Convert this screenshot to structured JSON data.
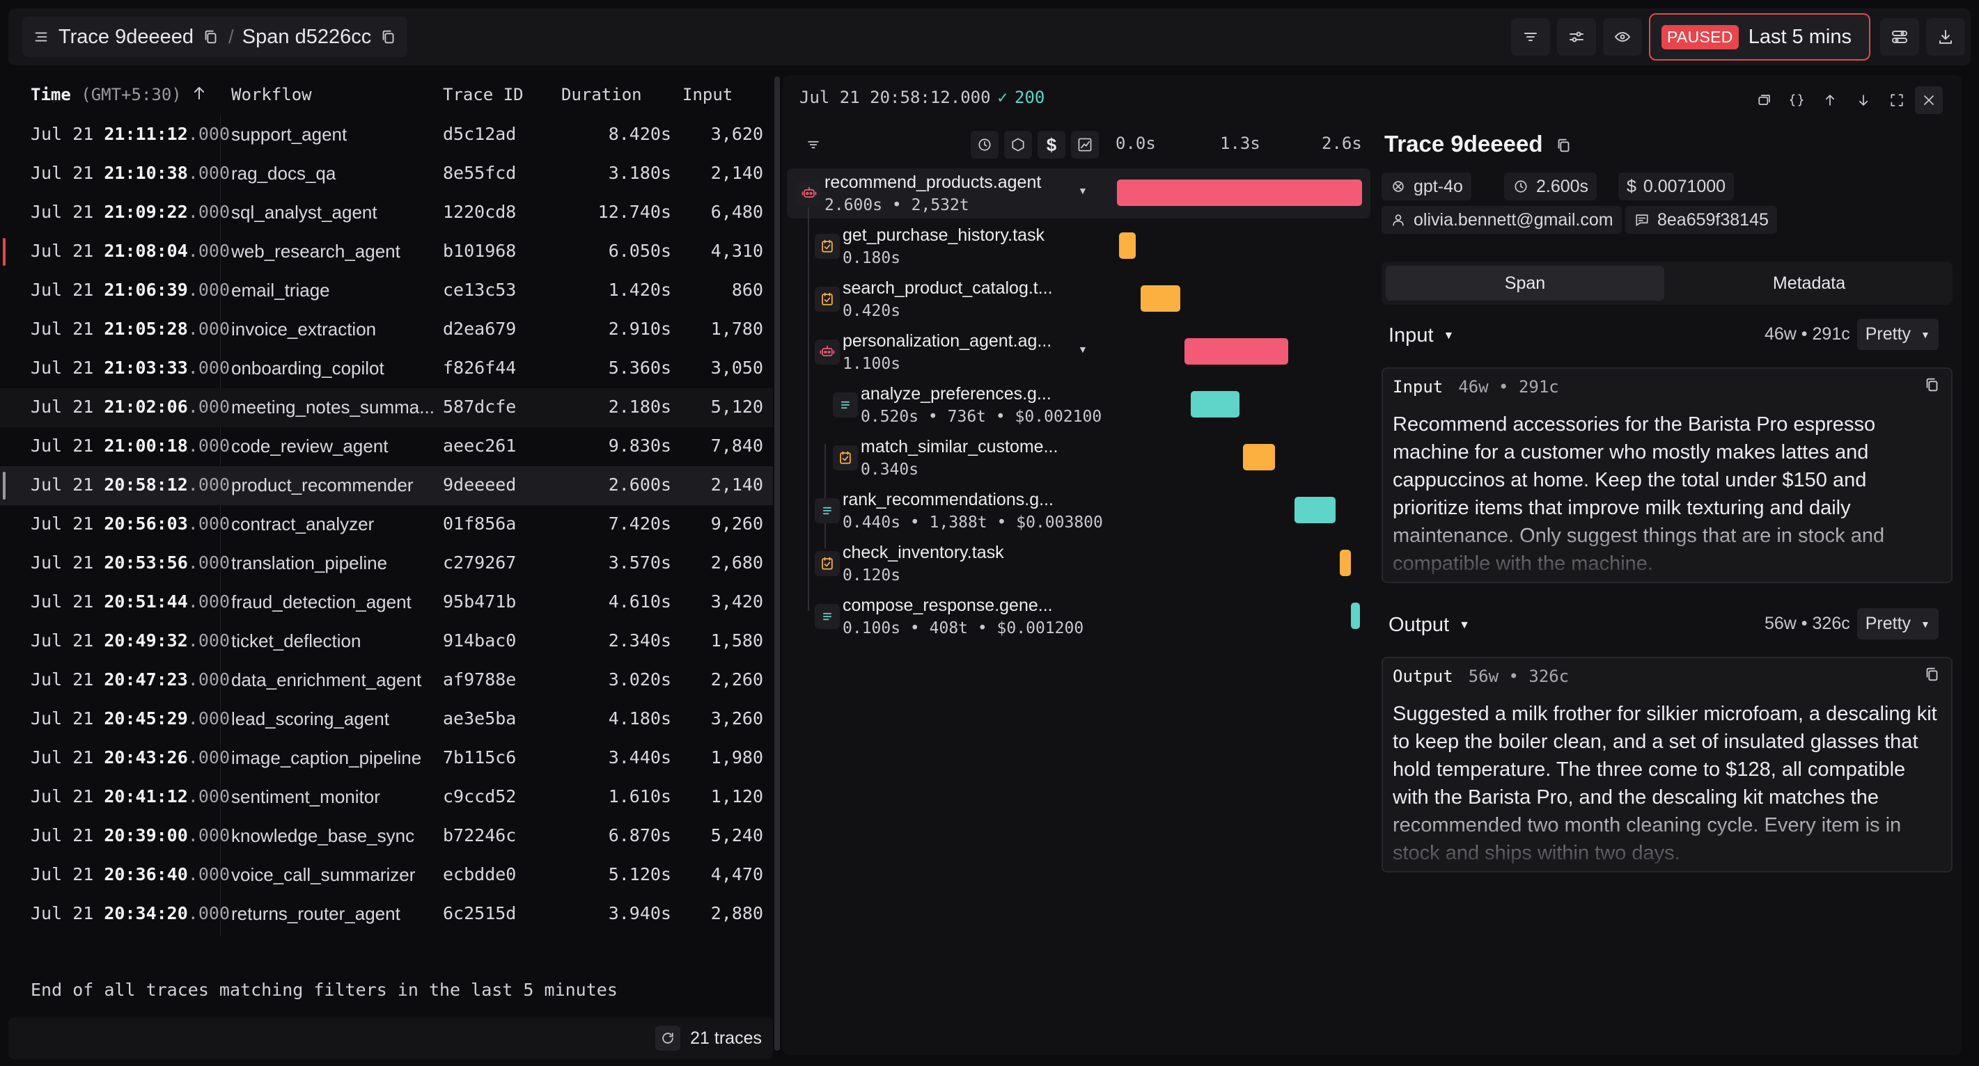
{
  "header": {
    "trace_label": "Trace 9deeeed",
    "separator": "/",
    "span_label": "Span d5226cc",
    "paused_badge": "PAUSED",
    "time_range": "Last 5 mins"
  },
  "table": {
    "columns": {
      "time": "Time",
      "time_zone": "(GMT+5:30)",
      "workflow": "Workflow",
      "trace_id": "Trace ID",
      "duration": "Duration",
      "input": "Input"
    },
    "rows": [
      {
        "date": "Jul 21",
        "time": "21:11:12",
        "ms": ".000",
        "workflow": "support_agent",
        "trace_id": "d5c12ad",
        "duration": "8.420s",
        "input": "3,620"
      },
      {
        "date": "Jul 21",
        "time": "21:10:38",
        "ms": ".000",
        "workflow": "rag_docs_qa",
        "trace_id": "8e55fcd",
        "duration": "3.180s",
        "input": "2,140"
      },
      {
        "date": "Jul 21",
        "time": "21:09:22",
        "ms": ".000",
        "workflow": "sql_analyst_agent",
        "trace_id": "1220cd8",
        "duration": "12.740s",
        "input": "6,480"
      },
      {
        "date": "Jul 21",
        "time": "21:08:04",
        "ms": ".000",
        "workflow": "web_research_agent",
        "trace_id": "b101968",
        "duration": "6.050s",
        "input": "4,310"
      },
      {
        "date": "Jul 21",
        "time": "21:06:39",
        "ms": ".000",
        "workflow": "email_triage",
        "trace_id": "ce13c53",
        "duration": "1.420s",
        "input": "860"
      },
      {
        "date": "Jul 21",
        "time": "21:05:28",
        "ms": ".000",
        "workflow": "invoice_extraction",
        "trace_id": "d2ea679",
        "duration": "2.910s",
        "input": "1,780"
      },
      {
        "date": "Jul 21",
        "time": "21:03:33",
        "ms": ".000",
        "workflow": "onboarding_copilot",
        "trace_id": "f826f44",
        "duration": "5.360s",
        "input": "3,050"
      },
      {
        "date": "Jul 21",
        "time": "21:02:06",
        "ms": ".000",
        "workflow": "meeting_notes_summa...",
        "trace_id": "587dcfe",
        "duration": "2.180s",
        "input": "5,120"
      },
      {
        "date": "Jul 21",
        "time": "21:00:18",
        "ms": ".000",
        "workflow": "code_review_agent",
        "trace_id": "aeec261",
        "duration": "9.830s",
        "input": "7,840"
      },
      {
        "date": "Jul 21",
        "time": "20:58:12",
        "ms": ".000",
        "workflow": "product_recommender",
        "trace_id": "9deeeed",
        "duration": "2.600s",
        "input": "2,140"
      },
      {
        "date": "Jul 21",
        "time": "20:56:03",
        "ms": ".000",
        "workflow": "contract_analyzer",
        "trace_id": "01f856a",
        "duration": "7.420s",
        "input": "9,260"
      },
      {
        "date": "Jul 21",
        "time": "20:53:56",
        "ms": ".000",
        "workflow": "translation_pipeline",
        "trace_id": "c279267",
        "duration": "3.570s",
        "input": "2,680"
      },
      {
        "date": "Jul 21",
        "time": "20:51:44",
        "ms": ".000",
        "workflow": "fraud_detection_agent",
        "trace_id": "95b471b",
        "duration": "4.610s",
        "input": "3,420"
      },
      {
        "date": "Jul 21",
        "time": "20:49:32",
        "ms": ".000",
        "workflow": "ticket_deflection",
        "trace_id": "914bac0",
        "duration": "2.340s",
        "input": "1,580"
      },
      {
        "date": "Jul 21",
        "time": "20:47:23",
        "ms": ".000",
        "workflow": "data_enrichment_agent",
        "trace_id": "af9788e",
        "duration": "3.020s",
        "input": "2,260"
      },
      {
        "date": "Jul 21",
        "time": "20:45:29",
        "ms": ".000",
        "workflow": "lead_scoring_agent",
        "trace_id": "ae3e5ba",
        "duration": "4.180s",
        "input": "3,260"
      },
      {
        "date": "Jul 21",
        "time": "20:43:26",
        "ms": ".000",
        "workflow": "image_caption_pipeline",
        "trace_id": "7b115c6",
        "duration": "3.440s",
        "input": "1,980"
      },
      {
        "date": "Jul 21",
        "time": "20:41:12",
        "ms": ".000",
        "workflow": "sentiment_monitor",
        "trace_id": "c9ccd52",
        "duration": "1.610s",
        "input": "1,120"
      },
      {
        "date": "Jul 21",
        "time": "20:39:00",
        "ms": ".000",
        "workflow": "knowledge_base_sync",
        "trace_id": "b72246c",
        "duration": "6.870s",
        "input": "5,240"
      },
      {
        "date": "Jul 21",
        "time": "20:36:40",
        "ms": ".000",
        "workflow": "voice_call_summarizer",
        "trace_id": "ecbdde0",
        "duration": "5.120s",
        "input": "4,470"
      },
      {
        "date": "Jul 21",
        "time": "20:34:20",
        "ms": ".000",
        "workflow": "returns_router_agent",
        "trace_id": "6c2515d",
        "duration": "3.940s",
        "input": "2,880"
      }
    ],
    "end_message": "End of all traces matching filters in the last 5 minutes",
    "trace_count": "21 traces"
  },
  "trace": {
    "timestamp": "Jul 21 20:58:12.000",
    "status_check": "✓",
    "status_code": "200",
    "ticks": [
      "0.0s",
      "1.3s",
      "2.6s"
    ],
    "spans": [
      {
        "name": "recommend_products.agent",
        "meta": "2.600s • 2,532t",
        "kind": "agent",
        "start": 0.0,
        "duration": 2.6
      },
      {
        "name": "get_purchase_history.task",
        "meta": "0.180s",
        "kind": "task",
        "start": 0.02,
        "duration": 0.18
      },
      {
        "name": "search_product_catalog.t...",
        "meta": "0.420s",
        "kind": "task",
        "start": 0.25,
        "duration": 0.42
      },
      {
        "name": "personalization_agent.ag...",
        "meta": "1.100s",
        "kind": "agent",
        "start": 0.72,
        "duration": 1.1
      },
      {
        "name": "analyze_preferences.g...",
        "meta": "0.520s • 736t • $0.002100",
        "kind": "generation",
        "start": 0.78,
        "duration": 0.52
      },
      {
        "name": "match_similar_custome...",
        "meta": "0.340s",
        "kind": "task",
        "start": 1.34,
        "duration": 0.34
      },
      {
        "name": "rank_recommendations.g...",
        "meta": "0.440s • 1,388t • $0.003800",
        "kind": "generation",
        "start": 1.88,
        "duration": 0.44
      },
      {
        "name": "check_inventory.task",
        "meta": "0.120s",
        "kind": "task",
        "start": 2.36,
        "duration": 0.12
      },
      {
        "name": "compose_response.gene...",
        "meta": "0.100s • 408t • $0.001200",
        "kind": "generation",
        "start": 2.48,
        "duration": 0.1
      }
    ],
    "colors": {
      "agent": "#f25a75",
      "task": "#fbb040",
      "generation": "#5fd4c8"
    }
  },
  "detail": {
    "title": "Trace 9deeeed",
    "model": "gpt-4o",
    "duration": "2.600s",
    "cost_symbol": "$",
    "cost": "0.0071000",
    "user": "olivia.bennett@gmail.com",
    "session": "8ea659f38145",
    "tabs": [
      "Span",
      "Metadata"
    ],
    "input": {
      "label": "Input",
      "stats": "46w • 291c",
      "view": "Pretty",
      "box_label": "Input",
      "box_stats": "46w • 291c",
      "text": "Recommend accessories for the Barista Pro espresso machine for a customer who mostly makes lattes and cappuccinos at home. Keep the total under $150 and prioritize items that improve milk texturing and daily maintenance. Only suggest things that are in stock and compatible with the machine."
    },
    "output": {
      "label": "Output",
      "stats": "56w • 326c",
      "view": "Pretty",
      "box_label": "Output",
      "box_stats": "56w • 326c",
      "text": "Suggested a milk frother for silkier microfoam, a descaling kit to keep the boiler clean, and a set of insulated glasses that hold temperature. The three come to $128, all compatible with the Barista Pro, and the descaling kit matches the recommended two month cleaning cycle. Every item is in stock and ships within two days."
    }
  }
}
